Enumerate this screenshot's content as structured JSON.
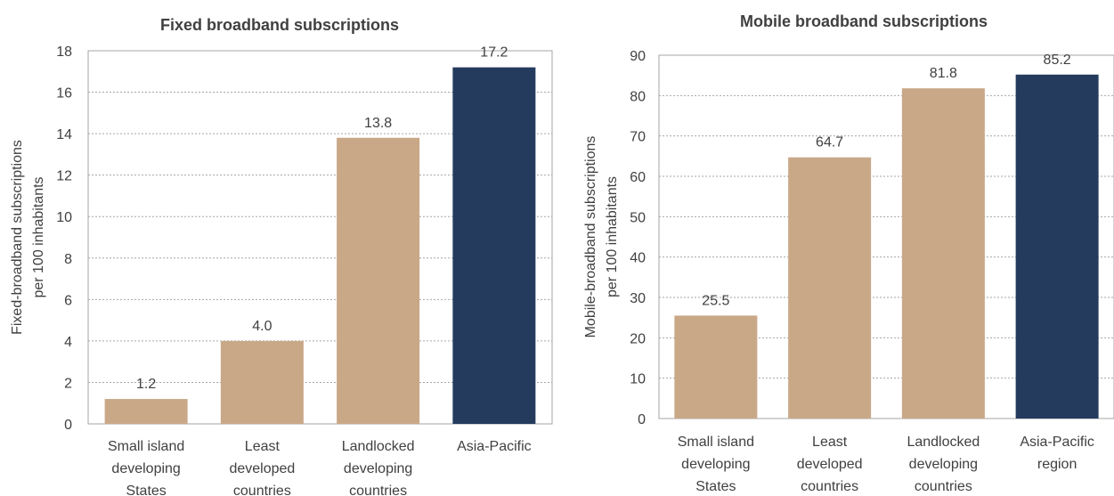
{
  "chart_data": [
    {
      "type": "bar",
      "title": "Fixed  broadband subscriptions",
      "ylabel_lines": [
        "Fixed-broadband subscriptions",
        "per 100 inhabitants"
      ],
      "xlabel": "",
      "ylim": [
        0,
        18
      ],
      "yticks": [
        0,
        2,
        4,
        6,
        8,
        10,
        12,
        14,
        16,
        18
      ],
      "grid": true,
      "legend": "none",
      "categories": [
        [
          "Small island",
          "developing",
          "States"
        ],
        [
          "Least",
          "developed",
          "countries"
        ],
        [
          "Landlocked",
          "developing",
          "countries"
        ],
        [
          "Asia-Pacific"
        ]
      ],
      "values": [
        1.2,
        4.0,
        13.8,
        17.2
      ],
      "value_labels": [
        "1.2",
        "4.0",
        "13.8",
        "17.2"
      ],
      "colors": [
        "#c9a888",
        "#c9a888",
        "#c9a888",
        "#243b5e"
      ]
    },
    {
      "type": "bar",
      "title": "Mobile  broadband subscriptions",
      "ylabel_lines": [
        "Mobile-broadband subscriptions",
        "per 100 inhabitants"
      ],
      "xlabel": "",
      "ylim": [
        0,
        90
      ],
      "yticks": [
        0,
        10,
        20,
        30,
        40,
        50,
        60,
        70,
        80,
        90
      ],
      "grid": true,
      "legend": "none",
      "categories": [
        [
          "Small island",
          "developing",
          "States"
        ],
        [
          "Least",
          "developed",
          "countries"
        ],
        [
          "Landlocked",
          "developing",
          "countries"
        ],
        [
          "Asia-Pacific",
          "region"
        ]
      ],
      "values": [
        25.5,
        64.7,
        81.8,
        85.2
      ],
      "value_labels": [
        "25.5",
        "64.7",
        "81.8",
        "85.2"
      ],
      "colors": [
        "#c9a888",
        "#c9a888",
        "#c9a888",
        "#243b5e"
      ]
    }
  ]
}
